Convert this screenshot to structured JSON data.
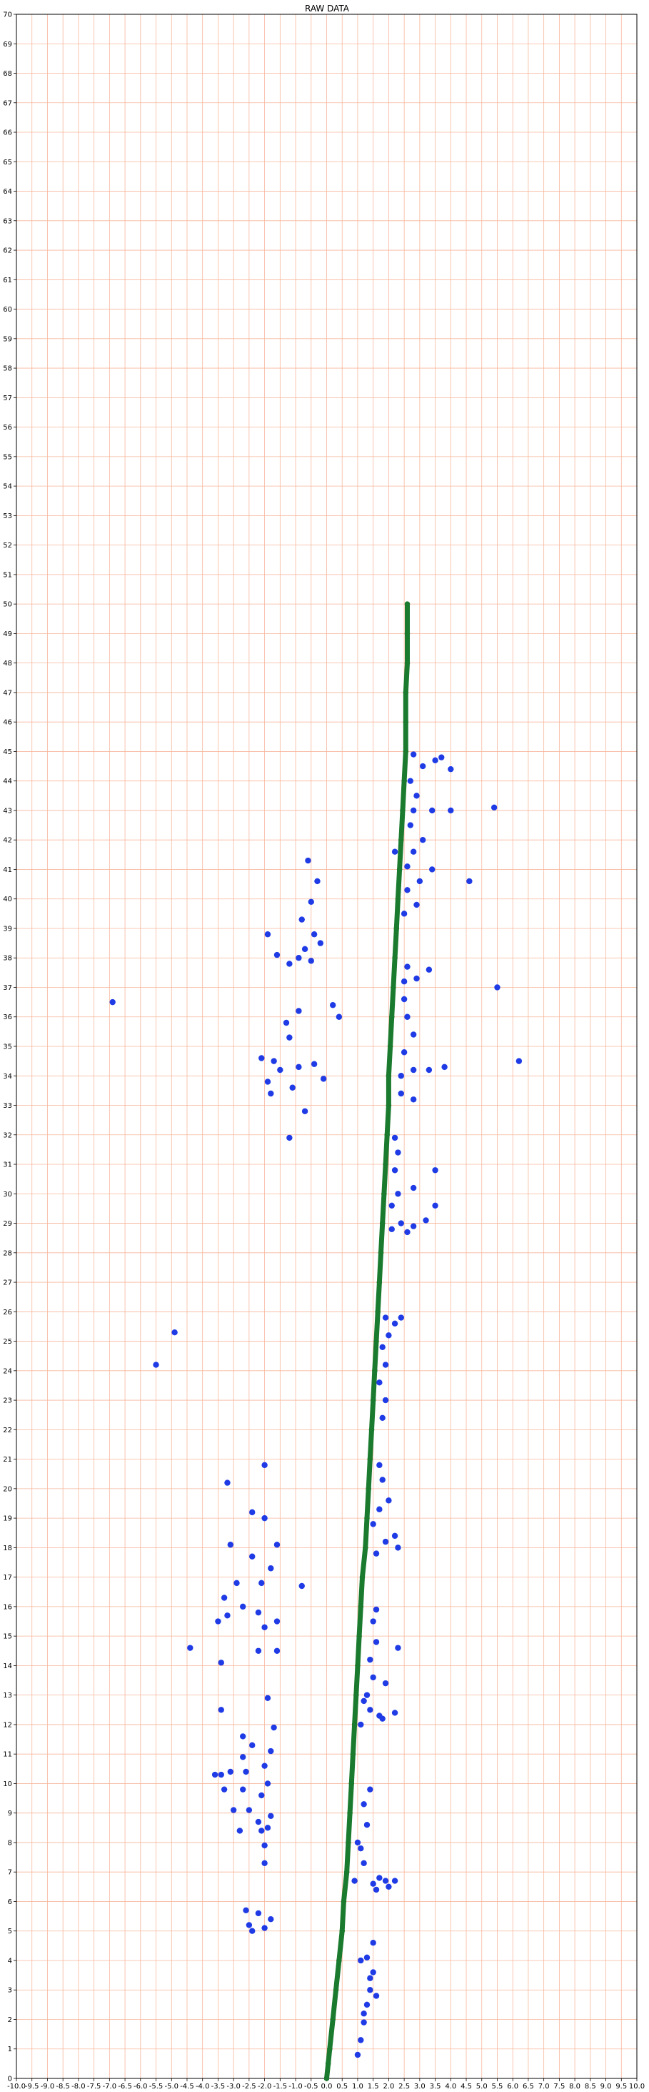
{
  "chart_data": {
    "type": "scatter",
    "title": "RAW DATA",
    "xlabel": "",
    "ylabel": "",
    "xlim": [
      -10,
      10
    ],
    "ylim": [
      0,
      70
    ],
    "x_tick_step": 0.5,
    "y_tick_step": 1,
    "x_tick_labels": [
      "-10.0",
      "-9.5",
      "-9.0",
      "-8.5",
      "-8.0",
      "-7.5",
      "-7.0",
      "-6.5",
      "-6.0",
      "-5.5",
      "-5.0",
      "-4.5",
      "-4.0",
      "-3.5",
      "-3.0",
      "-2.5",
      "-2.0",
      "-1.5",
      "-1.0",
      "-0.5",
      "0.0",
      "0.5",
      "1.0",
      "1.5",
      "2.0",
      "2.5",
      "3.0",
      "3.5",
      "4.0",
      "4.5",
      "5.0",
      "5.5",
      "6.0",
      "6.5",
      "7.0",
      "7.5",
      "8.0",
      "8.5",
      "9.0",
      "9.5",
      "10.0"
    ],
    "y_tick_labels": [
      "0",
      "1",
      "2",
      "3",
      "4",
      "5",
      "6",
      "7",
      "8",
      "9",
      "10",
      "11",
      "12",
      "13",
      "14",
      "15",
      "16",
      "17",
      "18",
      "19",
      "20",
      "21",
      "22",
      "23",
      "24",
      "25",
      "26",
      "27",
      "28",
      "29",
      "30",
      "31",
      "32",
      "33",
      "34",
      "35",
      "36",
      "37",
      "38",
      "39",
      "40",
      "41",
      "42",
      "43",
      "44",
      "45",
      "46",
      "47",
      "48",
      "49",
      "50",
      "51",
      "52",
      "53",
      "54",
      "55",
      "56",
      "57",
      "58",
      "59",
      "60",
      "61",
      "62",
      "63",
      "64",
      "65",
      "66",
      "67",
      "68",
      "69",
      "70"
    ],
    "grid": true,
    "colors": {
      "grid": "#f7b69b",
      "points": "#1f3be6",
      "path": "#1a7a2e"
    },
    "series": [
      {
        "marker": "circle",
        "points": [
          [
            1.0,
            0.8
          ],
          [
            1.1,
            1.3
          ],
          [
            1.2,
            1.9
          ],
          [
            1.3,
            2.5
          ],
          [
            1.4,
            3.0
          ],
          [
            1.5,
            3.6
          ],
          [
            1.3,
            4.1
          ],
          [
            1.5,
            4.6
          ],
          [
            1.2,
            2.2
          ],
          [
            1.4,
            3.4
          ],
          [
            1.1,
            4.0
          ],
          [
            1.6,
            2.8
          ],
          [
            0.9,
            6.7
          ],
          [
            1.2,
            7.3
          ],
          [
            1.5,
            6.6
          ],
          [
            1.9,
            6.7
          ],
          [
            2.2,
            6.7
          ],
          [
            1.0,
            8.0
          ],
          [
            1.3,
            8.6
          ],
          [
            1.2,
            9.3
          ],
          [
            1.4,
            9.8
          ],
          [
            1.7,
            6.8
          ],
          [
            2.0,
            6.5
          ],
          [
            1.1,
            7.8
          ],
          [
            1.6,
            6.4
          ],
          [
            1.1,
            12.0
          ],
          [
            1.4,
            12.5
          ],
          [
            1.7,
            12.3
          ],
          [
            2.2,
            12.4
          ],
          [
            1.3,
            13.0
          ],
          [
            1.5,
            13.6
          ],
          [
            1.4,
            14.2
          ],
          [
            1.6,
            14.8
          ],
          [
            1.5,
            15.5
          ],
          [
            1.6,
            15.9
          ],
          [
            1.9,
            13.4
          ],
          [
            2.3,
            14.6
          ],
          [
            1.8,
            12.2
          ],
          [
            1.2,
            12.8
          ],
          [
            1.6,
            17.8
          ],
          [
            1.9,
            18.2
          ],
          [
            2.3,
            18.0
          ],
          [
            1.5,
            18.8
          ],
          [
            1.7,
            19.3
          ],
          [
            2.0,
            19.6
          ],
          [
            1.8,
            20.3
          ],
          [
            1.7,
            20.8
          ],
          [
            2.2,
            18.4
          ],
          [
            1.8,
            22.4
          ],
          [
            1.9,
            23.0
          ],
          [
            1.7,
            23.6
          ],
          [
            1.9,
            24.2
          ],
          [
            1.8,
            24.8
          ],
          [
            2.0,
            25.2
          ],
          [
            1.9,
            25.8
          ],
          [
            2.2,
            25.6
          ],
          [
            2.4,
            25.8
          ],
          [
            2.1,
            28.8
          ],
          [
            2.4,
            29.0
          ],
          [
            2.8,
            28.9
          ],
          [
            3.2,
            29.1
          ],
          [
            2.1,
            29.6
          ],
          [
            2.3,
            30.0
          ],
          [
            2.8,
            30.2
          ],
          [
            2.2,
            30.8
          ],
          [
            2.3,
            31.4
          ],
          [
            2.2,
            31.9
          ],
          [
            3.5,
            29.6
          ],
          [
            3.5,
            30.8
          ],
          [
            2.6,
            28.7
          ],
          [
            2.4,
            33.4
          ],
          [
            2.8,
            33.2
          ],
          [
            2.4,
            34.0
          ],
          [
            2.8,
            34.2
          ],
          [
            3.3,
            34.2
          ],
          [
            3.8,
            34.3
          ],
          [
            2.5,
            34.8
          ],
          [
            2.8,
            35.4
          ],
          [
            2.6,
            36.0
          ],
          [
            2.5,
            36.6
          ],
          [
            2.5,
            37.2
          ],
          [
            2.9,
            37.3
          ],
          [
            3.3,
            37.6
          ],
          [
            2.6,
            37.7
          ],
          [
            2.5,
            39.5
          ],
          [
            2.9,
            39.8
          ],
          [
            2.6,
            40.3
          ],
          [
            3.0,
            40.6
          ],
          [
            3.4,
            41.0
          ],
          [
            2.6,
            41.1
          ],
          [
            2.8,
            41.6
          ],
          [
            3.1,
            42.0
          ],
          [
            2.7,
            42.5
          ],
          [
            2.8,
            43.0
          ],
          [
            2.9,
            43.5
          ],
          [
            3.4,
            43.0
          ],
          [
            2.7,
            44.0
          ],
          [
            3.1,
            44.5
          ],
          [
            3.5,
            44.7
          ],
          [
            2.8,
            44.9
          ],
          [
            3.7,
            44.8
          ],
          [
            4.0,
            44.4
          ],
          [
            2.2,
            41.6
          ],
          [
            4.0,
            43.0
          ],
          [
            4.6,
            40.6
          ],
          [
            5.4,
            43.1
          ],
          [
            5.5,
            37.0
          ],
          [
            6.2,
            34.5
          ],
          [
            -0.6,
            41.3
          ],
          [
            -0.3,
            40.6
          ],
          [
            -0.5,
            39.9
          ],
          [
            -0.8,
            39.3
          ],
          [
            -0.4,
            38.8
          ],
          [
            -0.7,
            38.3
          ],
          [
            -0.2,
            38.5
          ],
          [
            -0.5,
            37.9
          ],
          [
            -1.2,
            37.8
          ],
          [
            -0.9,
            38.0
          ],
          [
            -1.9,
            38.8
          ],
          [
            -1.6,
            38.1
          ],
          [
            0.2,
            36.4
          ],
          [
            0.4,
            36.0
          ],
          [
            -0.9,
            36.2
          ],
          [
            -1.3,
            35.8
          ],
          [
            -1.2,
            35.3
          ],
          [
            -2.1,
            34.6
          ],
          [
            -1.7,
            34.5
          ],
          [
            -0.9,
            34.3
          ],
          [
            -0.4,
            34.4
          ],
          [
            -1.1,
            33.6
          ],
          [
            -0.7,
            32.8
          ],
          [
            -1.2,
            31.9
          ],
          [
            -1.9,
            33.8
          ],
          [
            -1.8,
            33.4
          ],
          [
            -1.5,
            34.2
          ],
          [
            -0.1,
            33.9
          ],
          [
            -6.9,
            36.5
          ],
          [
            -4.9,
            25.3
          ],
          [
            -5.5,
            24.2
          ],
          [
            -2.0,
            20.8
          ],
          [
            -3.2,
            20.2
          ],
          [
            -2.4,
            19.2
          ],
          [
            -2.0,
            19.0
          ],
          [
            -1.6,
            18.1
          ],
          [
            -3.1,
            18.1
          ],
          [
            -2.4,
            17.7
          ],
          [
            -1.8,
            17.3
          ],
          [
            -2.1,
            16.8
          ],
          [
            -2.9,
            16.8
          ],
          [
            -3.3,
            16.3
          ],
          [
            -2.7,
            16.0
          ],
          [
            -0.8,
            16.7
          ],
          [
            -3.2,
            15.7
          ],
          [
            -1.6,
            15.5
          ],
          [
            -2.2,
            15.8
          ],
          [
            -3.5,
            15.5
          ],
          [
            -2.0,
            15.3
          ],
          [
            -4.4,
            14.6
          ],
          [
            -3.4,
            14.1
          ],
          [
            -1.6,
            14.5
          ],
          [
            -2.2,
            14.5
          ],
          [
            -1.9,
            12.9
          ],
          [
            -3.4,
            12.5
          ],
          [
            -1.7,
            11.9
          ],
          [
            -2.7,
            11.6
          ],
          [
            -2.4,
            11.3
          ],
          [
            -1.8,
            11.1
          ],
          [
            -2.7,
            10.9
          ],
          [
            -2.0,
            10.6
          ],
          [
            -3.4,
            10.3
          ],
          [
            -3.1,
            10.4
          ],
          [
            -2.6,
            10.4
          ],
          [
            -3.6,
            10.3
          ],
          [
            -1.9,
            10.0
          ],
          [
            -2.7,
            9.8
          ],
          [
            -3.3,
            9.8
          ],
          [
            -2.1,
            9.6
          ],
          [
            -3.0,
            9.1
          ],
          [
            -2.5,
            9.1
          ],
          [
            -1.8,
            8.9
          ],
          [
            -2.2,
            8.7
          ],
          [
            -2.1,
            8.4
          ],
          [
            -1.9,
            8.5
          ],
          [
            -2.8,
            8.4
          ],
          [
            -2.0,
            7.9
          ],
          [
            -2.0,
            7.3
          ],
          [
            -2.6,
            5.7
          ],
          [
            -2.2,
            5.6
          ],
          [
            -1.8,
            5.4
          ],
          [
            -2.5,
            5.2
          ],
          [
            -2.0,
            5.1
          ],
          [
            -2.4,
            5.0
          ]
        ]
      },
      {
        "marker": "line",
        "points": [
          [
            0.0,
            0.0
          ],
          [
            0.05,
            0.5
          ],
          [
            0.1,
            1.0
          ],
          [
            0.2,
            2.0
          ],
          [
            0.3,
            3.0
          ],
          [
            0.4,
            4.0
          ],
          [
            0.5,
            5.0
          ],
          [
            0.55,
            6.0
          ],
          [
            0.65,
            7.0
          ],
          [
            0.7,
            8.0
          ],
          [
            0.75,
            9.0
          ],
          [
            0.8,
            10.0
          ],
          [
            0.85,
            11.0
          ],
          [
            0.9,
            12.0
          ],
          [
            0.95,
            13.0
          ],
          [
            1.0,
            14.0
          ],
          [
            1.05,
            15.0
          ],
          [
            1.1,
            16.0
          ],
          [
            1.15,
            17.0
          ],
          [
            1.25,
            18.0
          ],
          [
            1.3,
            19.0
          ],
          [
            1.35,
            20.0
          ],
          [
            1.4,
            21.0
          ],
          [
            1.45,
            22.0
          ],
          [
            1.5,
            23.0
          ],
          [
            1.55,
            24.0
          ],
          [
            1.6,
            25.0
          ],
          [
            1.65,
            26.0
          ],
          [
            1.7,
            27.0
          ],
          [
            1.75,
            28.0
          ],
          [
            1.8,
            29.0
          ],
          [
            1.85,
            30.0
          ],
          [
            1.9,
            31.0
          ],
          [
            1.95,
            32.0
          ],
          [
            2.0,
            33.0
          ],
          [
            2.0,
            34.0
          ],
          [
            2.05,
            35.0
          ],
          [
            2.1,
            36.0
          ],
          [
            2.15,
            37.0
          ],
          [
            2.2,
            38.0
          ],
          [
            2.25,
            39.0
          ],
          [
            2.3,
            40.0
          ],
          [
            2.35,
            41.0
          ],
          [
            2.4,
            42.0
          ],
          [
            2.45,
            43.0
          ],
          [
            2.5,
            44.0
          ],
          [
            2.55,
            45.0
          ],
          [
            2.55,
            46.0
          ],
          [
            2.55,
            47.0
          ],
          [
            2.6,
            48.0
          ],
          [
            2.6,
            49.0
          ],
          [
            2.6,
            50.0
          ]
        ]
      }
    ]
  }
}
